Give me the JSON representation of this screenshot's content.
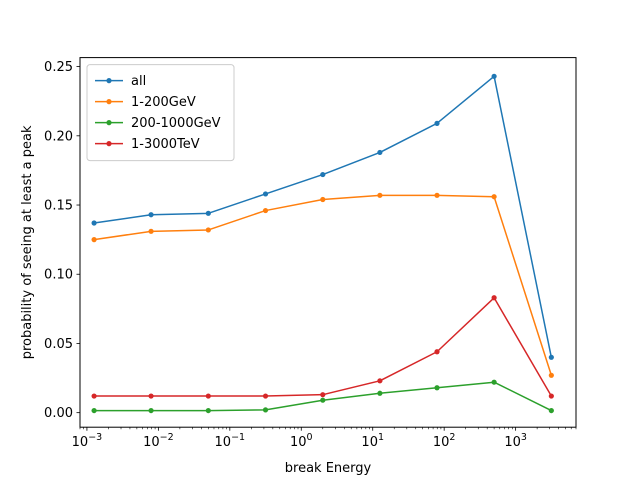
{
  "chart_data": {
    "type": "line",
    "title": "",
    "xlabel": "break Energy",
    "ylabel": "probability of seeing at least a peak",
    "xscale": "log",
    "xlim": [
      0.0008,
      7000
    ],
    "ylim": [
      -0.0105,
      0.2565
    ],
    "grid": false,
    "legend_position": "top-left",
    "x_ticks": [
      {
        "value": 0.001,
        "label": "10",
        "exp": "−3"
      },
      {
        "value": 0.01,
        "label": "10",
        "exp": "−2"
      },
      {
        "value": 0.1,
        "label": "10",
        "exp": "−1"
      },
      {
        "value": 1,
        "label": "10",
        "exp": "0"
      },
      {
        "value": 10,
        "label": "10",
        "exp": "1"
      },
      {
        "value": 100,
        "label": "10",
        "exp": "2"
      },
      {
        "value": 1000,
        "label": "10",
        "exp": "3"
      }
    ],
    "y_ticks": [
      {
        "value": 0.0,
        "label": "0.00"
      },
      {
        "value": 0.05,
        "label": "0.05"
      },
      {
        "value": 0.1,
        "label": "0.10"
      },
      {
        "value": 0.15,
        "label": "0.15"
      },
      {
        "value": 0.2,
        "label": "0.20"
      },
      {
        "value": 0.25,
        "label": "0.25"
      }
    ],
    "x": [
      0.00126,
      0.0079,
      0.05,
      0.316,
      2.0,
      12.6,
      79.4,
      500,
      3162
    ],
    "series": [
      {
        "name": "all",
        "color": "#1f77b4",
        "values": [
          0.137,
          0.143,
          0.144,
          0.158,
          0.172,
          0.188,
          0.209,
          0.243,
          0.04
        ]
      },
      {
        "name": "1-200GeV",
        "color": "#ff7f0e",
        "values": [
          0.125,
          0.131,
          0.132,
          0.146,
          0.154,
          0.157,
          0.157,
          0.156,
          0.027
        ]
      },
      {
        "name": "200-1000GeV",
        "color": "#2ca02c",
        "values": [
          0.0015,
          0.0015,
          0.0015,
          0.002,
          0.009,
          0.014,
          0.018,
          0.022,
          0.0015
        ]
      },
      {
        "name": "1-3000TeV",
        "color": "#d62728",
        "values": [
          0.012,
          0.012,
          0.012,
          0.012,
          0.013,
          0.023,
          0.044,
          0.083,
          0.012
        ]
      }
    ]
  }
}
